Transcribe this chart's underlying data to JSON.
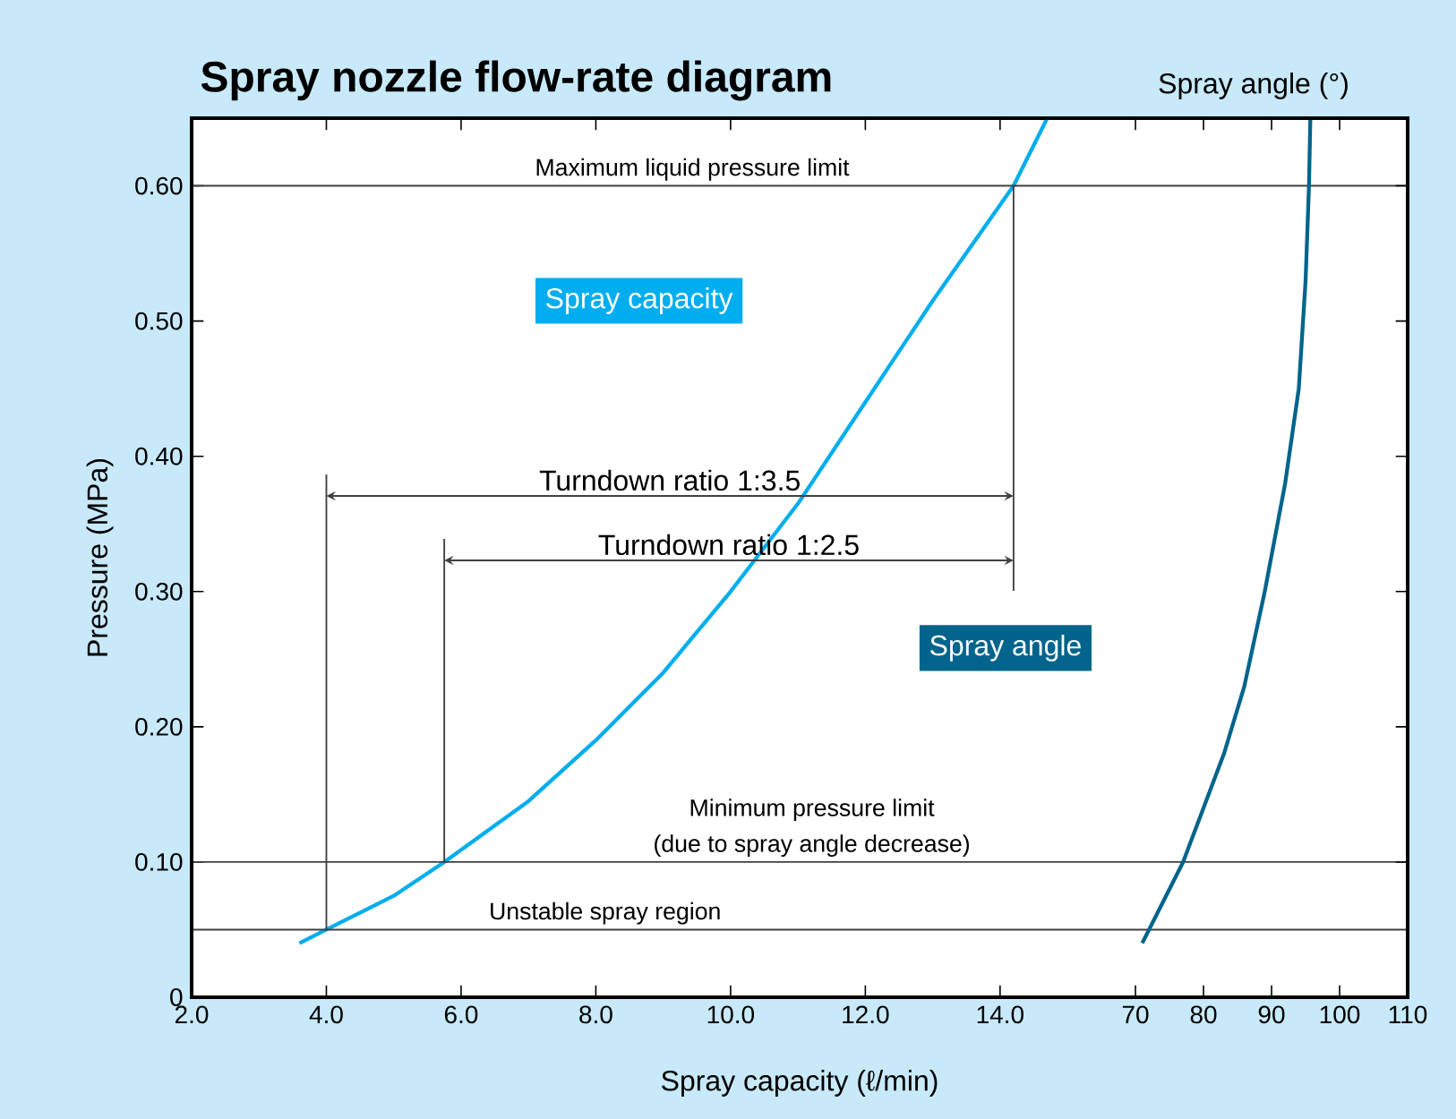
{
  "chart_data": {
    "type": "line",
    "title": "Spray nozzle flow-rate diagram",
    "xlabel": "Spray capacity (ℓ/min)",
    "ylabel": "Pressure (MPa)",
    "x2label": "Spray angle (°)",
    "xlim": [
      2,
      20.05
    ],
    "xticks": [
      {
        "value": 2,
        "label": "2.0"
      },
      {
        "value": 4,
        "label": "4.0"
      },
      {
        "value": 6,
        "label": "6.0"
      },
      {
        "value": 8,
        "label": "8.0"
      },
      {
        "value": 10,
        "label": "10.0"
      },
      {
        "value": 12,
        "label": "12.0"
      },
      {
        "value": 14,
        "label": "14.0"
      }
    ],
    "x2lim": [
      -68.7,
      110
    ],
    "x2ticks": [
      70,
      80,
      90,
      100,
      110
    ],
    "ylim": [
      0,
      0.65
    ],
    "yticks": [
      0,
      {
        "value": 0.1,
        "label": "0.10"
      },
      {
        "value": 0.2,
        "label": "0.20"
      },
      {
        "value": 0.3,
        "label": "0.30"
      },
      {
        "value": 0.4,
        "label": "0.40"
      },
      {
        "value": 0.5,
        "label": "0.50"
      },
      {
        "value": 0.6,
        "label": "0.60"
      }
    ],
    "marker": "none",
    "line_style": "solid",
    "series": [
      {
        "name": "Spray capacity",
        "color": "#00aeef",
        "x": [
          3.6,
          4.0,
          5.0,
          5.75,
          7.0,
          8.0,
          9.0,
          10.0,
          11.0,
          12.0,
          13.0,
          14.2,
          14.7
        ],
        "values": [
          0.04,
          0.05,
          0.075,
          0.1,
          0.145,
          0.19,
          0.24,
          0.3,
          0.365,
          0.44,
          0.515,
          0.6,
          0.65
        ]
      },
      {
        "name": "Spray angle",
        "color": "#00648c",
        "axis": "x2",
        "x": [
          71.0,
          74.0,
          77.0,
          80.0,
          83.0,
          86.0,
          89.0,
          92.0,
          94.0,
          95.0,
          95.5,
          95.7
        ],
        "values": [
          0.04,
          0.07,
          0.1,
          0.14,
          0.18,
          0.23,
          0.3,
          0.38,
          0.45,
          0.53,
          0.6,
          0.65
        ]
      }
    ],
    "ref_lines": [
      {
        "axis": "y",
        "value": 0.6,
        "label": "Maximum liquid pressure limit"
      },
      {
        "axis": "y",
        "value": 0.1,
        "label": "Minimum pressure limit"
      },
      {
        "axis": "y",
        "value": 0.05,
        "label": "Unstable spray region"
      }
    ],
    "annotations": [
      "(due to spray angle decrease)",
      "Turndown ratio 1:3.5",
      "Turndown ratio 1:2.5"
    ]
  }
}
